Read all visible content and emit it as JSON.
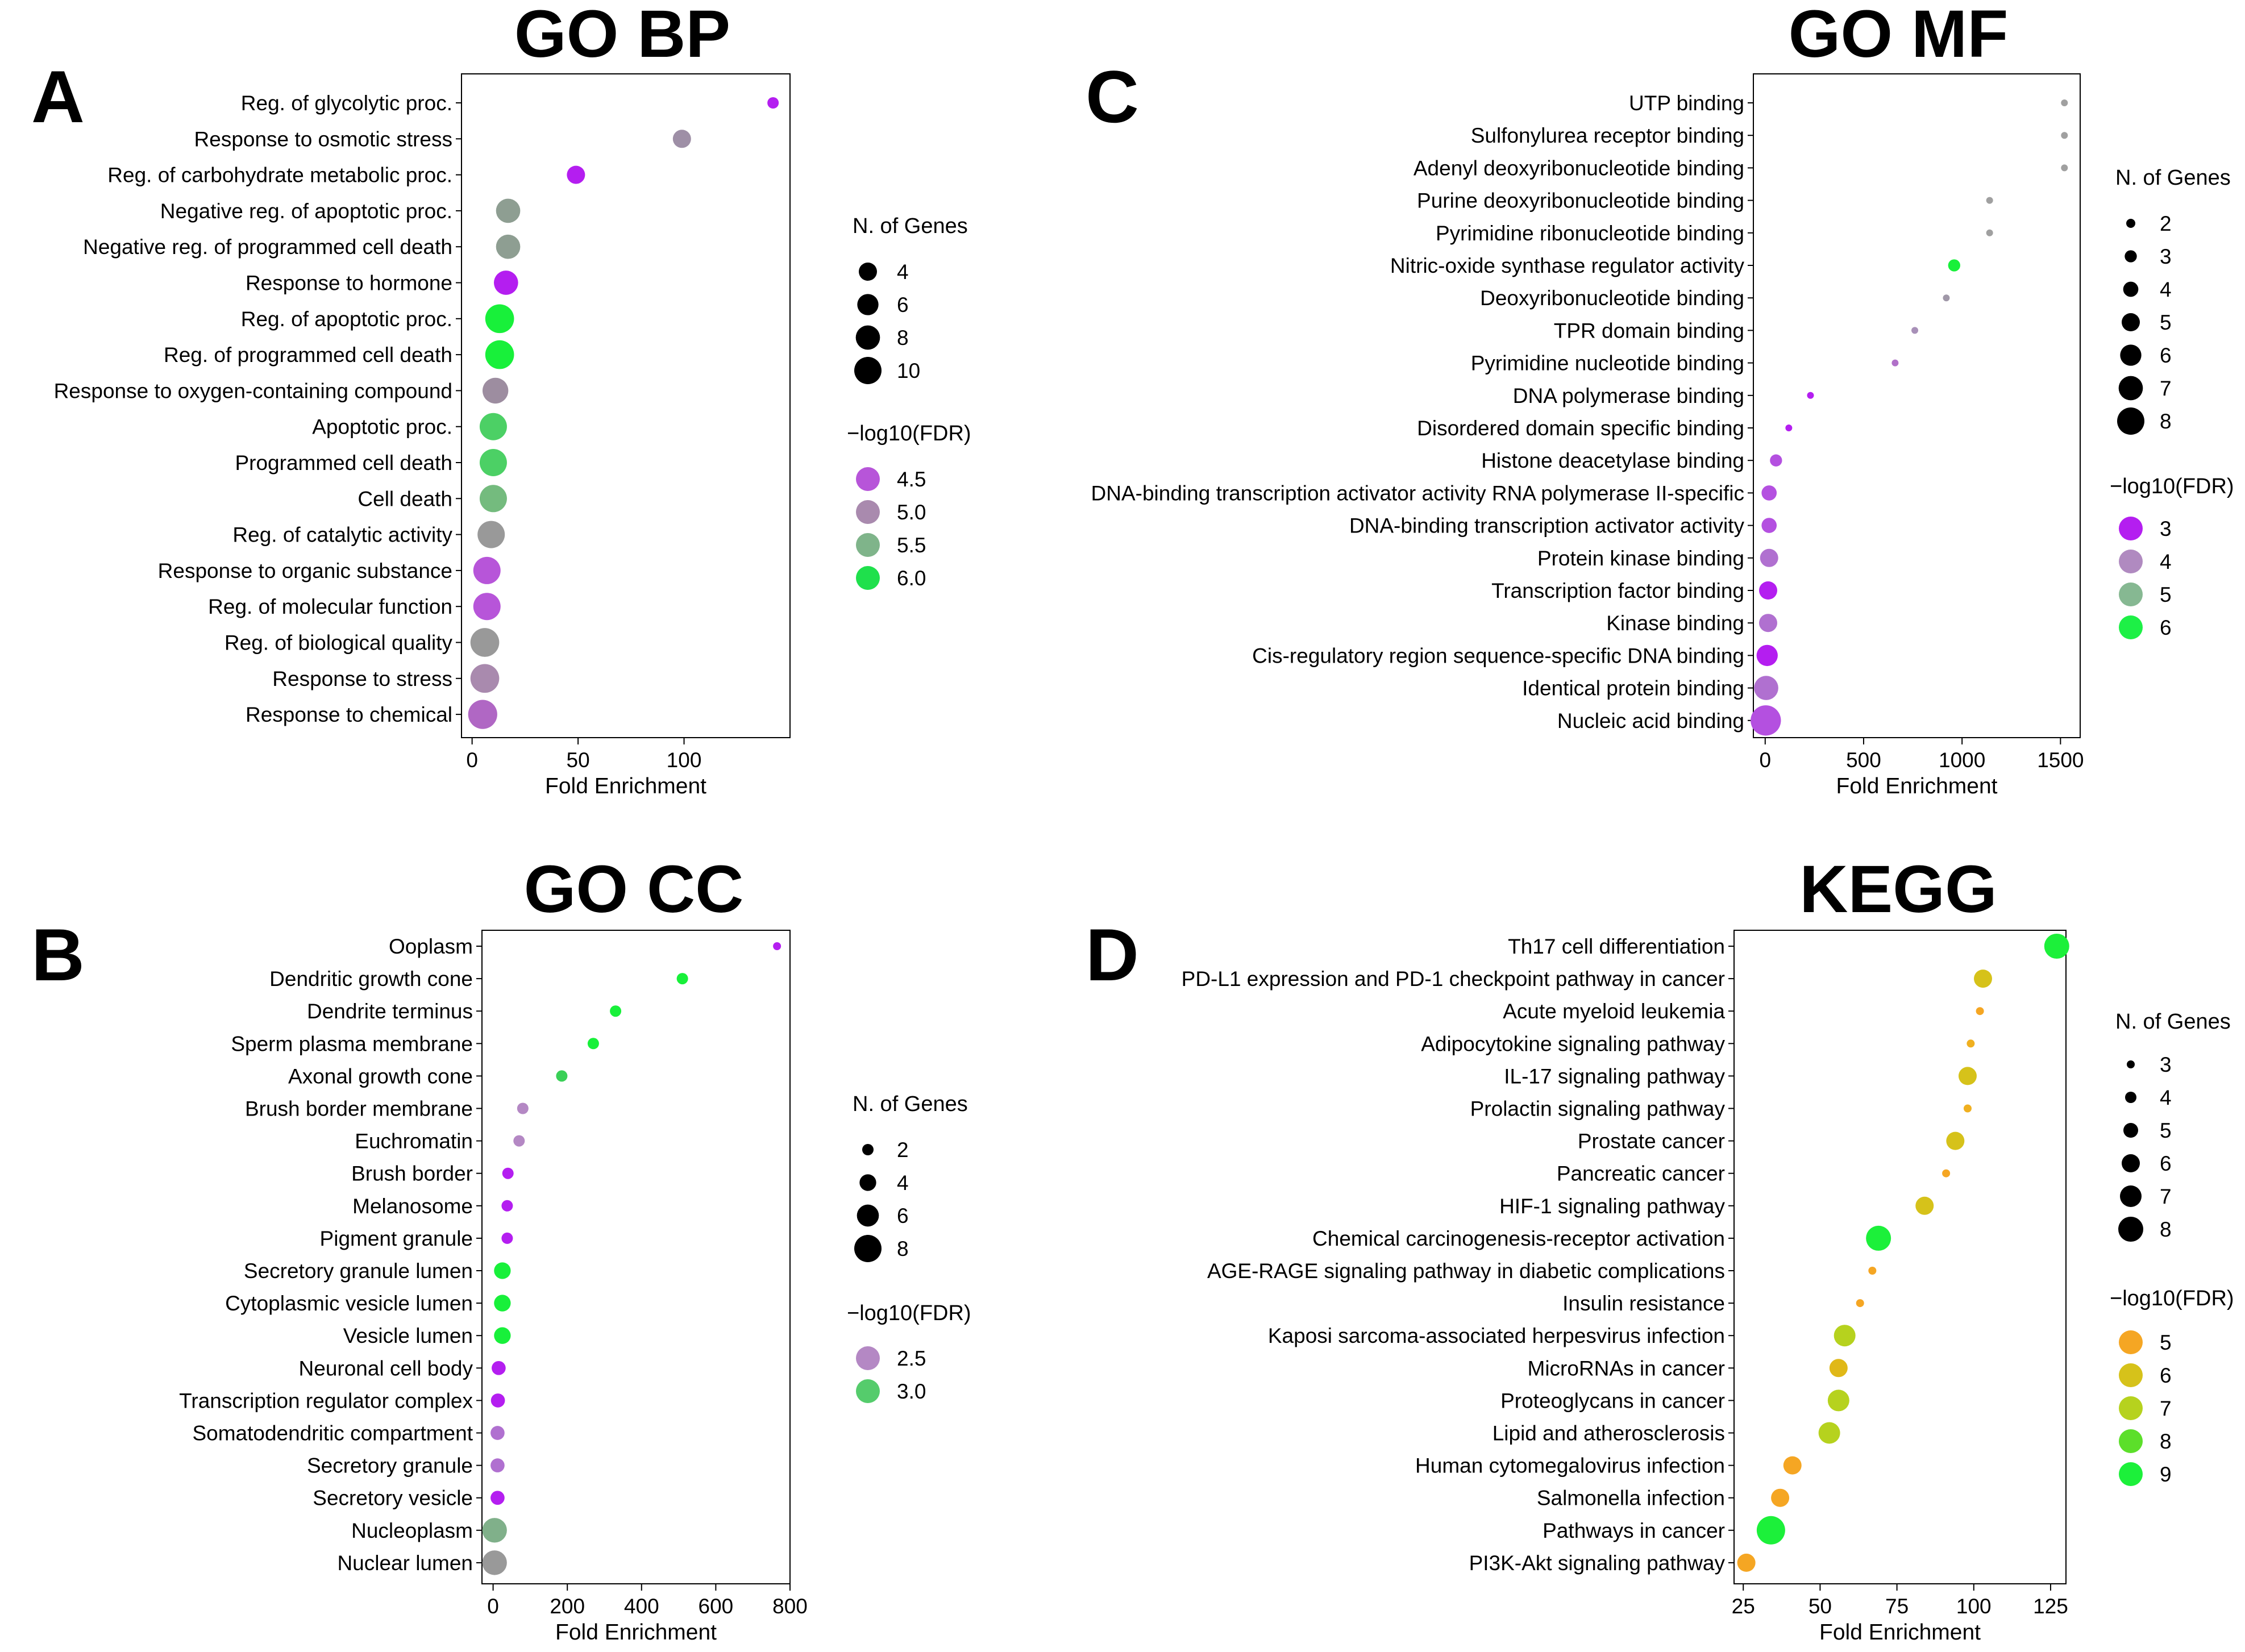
{
  "chart_data": [
    {
      "panel": "A",
      "type": "scatter",
      "title": "GO BP",
      "xlabel": "Fold Enrichment",
      "xlim": [
        -5,
        150
      ],
      "xticks": [
        0,
        50,
        100
      ],
      "size_legend_title": "N. of Genes",
      "size_legend": [
        4,
        6,
        8,
        10
      ],
      "color_legend_title": "−log10(FDR)",
      "color_legend": [
        {
          "label": "4.5",
          "color": "#b755d9"
        },
        {
          "label": "5.0",
          "color": "#a98aae"
        },
        {
          "label": "5.5",
          "color": "#7fb48a"
        },
        {
          "label": "6.0",
          "color": "#1fe04c"
        }
      ],
      "points": [
        {
          "term": "Reg. of glycolytic proc.",
          "x": 142,
          "genes": 2,
          "color": "#b41ef0"
        },
        {
          "term": "Response to osmotic stress",
          "x": 99,
          "genes": 4,
          "color": "#9e8fa6"
        },
        {
          "term": "Reg. of carbohydrate metabolic proc.",
          "x": 49,
          "genes": 4,
          "color": "#b41ef0"
        },
        {
          "term": "Negative reg. of apoptotic proc.",
          "x": 17,
          "genes": 8,
          "color": "#8e9e92"
        },
        {
          "term": "Negative reg. of programmed cell death",
          "x": 17,
          "genes": 8,
          "color": "#8e9e92"
        },
        {
          "term": "Response to hormone",
          "x": 16,
          "genes": 8,
          "color": "#b41ef0"
        },
        {
          "term": "Reg. of apoptotic proc.",
          "x": 13,
          "genes": 11,
          "color": "#18f03a"
        },
        {
          "term": "Reg. of programmed cell death",
          "x": 13,
          "genes": 11,
          "color": "#18f03a"
        },
        {
          "term": "Response to oxygen-containing compound",
          "x": 11,
          "genes": 9,
          "color": "#9d8da0"
        },
        {
          "term": "Apoptotic proc.",
          "x": 10,
          "genes": 10,
          "color": "#4cd065"
        },
        {
          "term": "Programmed cell death",
          "x": 10,
          "genes": 10,
          "color": "#4cd065"
        },
        {
          "term": "Cell death",
          "x": 10,
          "genes": 10,
          "color": "#74bb7e"
        },
        {
          "term": "Reg. of catalytic activity",
          "x": 9,
          "genes": 10,
          "color": "#999999"
        },
        {
          "term": "Response to organic substance",
          "x": 7,
          "genes": 10,
          "color": "#b755d9"
        },
        {
          "term": "Reg. of molecular function",
          "x": 7,
          "genes": 10,
          "color": "#b755d9"
        },
        {
          "term": "Reg. of biological quality",
          "x": 6,
          "genes": 11,
          "color": "#999999"
        },
        {
          "term": "Response to stress",
          "x": 6,
          "genes": 11,
          "color": "#a98aae"
        },
        {
          "term": "Response to chemical",
          "x": 5,
          "genes": 12,
          "color": "#b067c4"
        }
      ]
    },
    {
      "panel": "C",
      "type": "scatter",
      "title": "GO MF",
      "xlabel": "Fold Enrichment",
      "xlim": [
        -60,
        1600
      ],
      "xticks": [
        0,
        500,
        1000,
        1500
      ],
      "size_legend_title": "N. of Genes",
      "size_legend": [
        2,
        3,
        4,
        5,
        6,
        7,
        8
      ],
      "color_legend_title": "−log10(FDR)",
      "color_legend": [
        {
          "label": "3",
          "color": "#b41ef0"
        },
        {
          "label": "4",
          "color": "#b08ac0"
        },
        {
          "label": "5",
          "color": "#86b892"
        },
        {
          "label": "6",
          "color": "#1df046"
        }
      ],
      "points": [
        {
          "term": "UTP binding",
          "x": 1520,
          "genes": 1,
          "color": "#a0a0a0"
        },
        {
          "term": "Sulfonylurea receptor binding",
          "x": 1520,
          "genes": 1,
          "color": "#a0a0a0"
        },
        {
          "term": "Adenyl deoxyribonucleotide binding",
          "x": 1520,
          "genes": 1,
          "color": "#a0a0a0"
        },
        {
          "term": "Purine deoxyribonucleotide binding",
          "x": 1140,
          "genes": 1,
          "color": "#a0a0a0"
        },
        {
          "term": "Pyrimidine ribonucleotide binding",
          "x": 1140,
          "genes": 1,
          "color": "#a0a0a0"
        },
        {
          "term": "Nitric-oxide synthase regulator activity",
          "x": 960,
          "genes": 3,
          "color": "#18f03a"
        },
        {
          "term": "Deoxyribonucleotide binding",
          "x": 920,
          "genes": 1,
          "color": "#a098a8"
        },
        {
          "term": "TPR domain binding",
          "x": 760,
          "genes": 1,
          "color": "#a890b8"
        },
        {
          "term": "Pyrimidine nucleotide binding",
          "x": 660,
          "genes": 1,
          "color": "#b070c8"
        },
        {
          "term": "DNA polymerase binding",
          "x": 230,
          "genes": 1,
          "color": "#b41ef0"
        },
        {
          "term": "Disordered domain specific binding",
          "x": 120,
          "genes": 1,
          "color": "#b41ef0"
        },
        {
          "term": "Histone deacetylase binding",
          "x": 55,
          "genes": 3,
          "color": "#b450e0"
        },
        {
          "term": "DNA-binding transcription activator activity RNA polymerase II-specific",
          "x": 20,
          "genes": 4,
          "color": "#b450e0"
        },
        {
          "term": "DNA-binding transcription activator activity",
          "x": 20,
          "genes": 4,
          "color": "#b450e0"
        },
        {
          "term": "Protein kinase binding",
          "x": 20,
          "genes": 5,
          "color": "#b070d0"
        },
        {
          "term": "Transcription factor binding",
          "x": 15,
          "genes": 5,
          "color": "#b41ef0"
        },
        {
          "term": "Kinase binding",
          "x": 15,
          "genes": 5,
          "color": "#b070d0"
        },
        {
          "term": "Cis-regulatory region sequence-specific DNA binding",
          "x": 10,
          "genes": 6,
          "color": "#b41ef0"
        },
        {
          "term": "Identical protein binding",
          "x": 5,
          "genes": 7,
          "color": "#b070d0"
        },
        {
          "term": "Nucleic acid binding",
          "x": 3,
          "genes": 9,
          "color": "#b450e0"
        }
      ]
    },
    {
      "panel": "B",
      "type": "scatter",
      "title": "GO CC",
      "xlabel": "Fold Enrichment",
      "xlim": [
        -30,
        800
      ],
      "xticks": [
        0,
        200,
        400,
        600,
        800
      ],
      "size_legend_title": "N. of Genes",
      "size_legend": [
        2,
        4,
        6,
        8
      ],
      "color_legend_title": "−log10(FDR)",
      "color_legend": [
        {
          "label": "2.5",
          "color": "#b488c4"
        },
        {
          "label": "3.0",
          "color": "#55cc6c"
        }
      ],
      "points": [
        {
          "term": "Ooplasm",
          "x": 765,
          "genes": 1,
          "color": "#b41ef0"
        },
        {
          "term": "Dendritic growth cone",
          "x": 510,
          "genes": 2,
          "color": "#18f03a"
        },
        {
          "term": "Dendrite terminus",
          "x": 330,
          "genes": 2,
          "color": "#18f03a"
        },
        {
          "term": "Sperm plasma membrane",
          "x": 270,
          "genes": 2,
          "color": "#18f03a"
        },
        {
          "term": "Axonal growth cone",
          "x": 185,
          "genes": 2,
          "color": "#3ad057"
        },
        {
          "term": "Brush border membrane",
          "x": 80,
          "genes": 2,
          "color": "#b488c4"
        },
        {
          "term": "Euchromatin",
          "x": 70,
          "genes": 2,
          "color": "#b488c4"
        },
        {
          "term": "Brush border",
          "x": 40,
          "genes": 2,
          "color": "#b41ef0"
        },
        {
          "term": "Melanosome",
          "x": 38,
          "genes": 2,
          "color": "#b41ef0"
        },
        {
          "term": "Pigment granule",
          "x": 38,
          "genes": 2,
          "color": "#b41ef0"
        },
        {
          "term": "Secretory granule lumen",
          "x": 25,
          "genes": 4,
          "color": "#18f03a"
        },
        {
          "term": "Cytoplasmic vesicle lumen",
          "x": 25,
          "genes": 4,
          "color": "#18f03a"
        },
        {
          "term": "Vesicle lumen",
          "x": 25,
          "genes": 4,
          "color": "#18f03a"
        },
        {
          "term": "Neuronal cell body",
          "x": 15,
          "genes": 3,
          "color": "#b41ef0"
        },
        {
          "term": "Transcription regulator complex",
          "x": 13,
          "genes": 3,
          "color": "#b41ef0"
        },
        {
          "term": "Somatodendritic compartment",
          "x": 12,
          "genes": 3,
          "color": "#b070d0"
        },
        {
          "term": "Secretory granule",
          "x": 12,
          "genes": 3,
          "color": "#b070d0"
        },
        {
          "term": "Secretory vesicle",
          "x": 12,
          "genes": 3,
          "color": "#b41ef0"
        },
        {
          "term": "Nucleoplasm",
          "x": 4,
          "genes": 7,
          "color": "#80b08a"
        },
        {
          "term": "Nuclear lumen",
          "x": 4,
          "genes": 7,
          "color": "#999999"
        }
      ]
    },
    {
      "panel": "D",
      "type": "scatter",
      "title": "KEGG",
      "xlabel": "Fold Enrichment",
      "xlim": [
        22,
        130
      ],
      "xticks": [
        25,
        50,
        75,
        100,
        125
      ],
      "size_legend_title": "N. of Genes",
      "size_legend": [
        3,
        4,
        5,
        6,
        7,
        8
      ],
      "color_legend_title": "−log10(FDR)",
      "color_legend": [
        {
          "label": "5",
          "color": "#f5a623"
        },
        {
          "label": "6",
          "color": "#d6c21a"
        },
        {
          "label": "7",
          "color": "#b6d21e"
        },
        {
          "label": "8",
          "color": "#5cdf2a"
        },
        {
          "label": "9",
          "color": "#1cf03a"
        }
      ],
      "points": [
        {
          "term": "Th17 cell differentiation",
          "x": 127,
          "genes": 8,
          "color": "#1cf03a"
        },
        {
          "term": "PD-L1 expression and PD-1 checkpoint pathway in cancer",
          "x": 103,
          "genes": 6,
          "color": "#d6c21a"
        },
        {
          "term": "Acute myeloid leukemia",
          "x": 102,
          "genes": 3,
          "color": "#f5a623"
        },
        {
          "term": "Adipocytokine signaling pathway",
          "x": 99,
          "genes": 3,
          "color": "#f0b020"
        },
        {
          "term": "IL-17 signaling pathway",
          "x": 98,
          "genes": 6,
          "color": "#d6c21a"
        },
        {
          "term": "Prolactin signaling pathway",
          "x": 98,
          "genes": 3,
          "color": "#f0b020"
        },
        {
          "term": "Prostate cancer",
          "x": 94,
          "genes": 6,
          "color": "#d6c21a"
        },
        {
          "term": "Pancreatic cancer",
          "x": 91,
          "genes": 3,
          "color": "#f5a623"
        },
        {
          "term": "HIF-1 signaling pathway",
          "x": 84,
          "genes": 6,
          "color": "#d6c21a"
        },
        {
          "term": "Chemical carcinogenesis-receptor activation",
          "x": 69,
          "genes": 8,
          "color": "#1cf03a"
        },
        {
          "term": "AGE-RAGE signaling pathway in diabetic complications",
          "x": 67,
          "genes": 3,
          "color": "#f5a623"
        },
        {
          "term": "Insulin resistance",
          "x": 63,
          "genes": 3,
          "color": "#f5a623"
        },
        {
          "term": "Kaposi sarcoma-associated herpesvirus infection",
          "x": 58,
          "genes": 7,
          "color": "#b6d21e"
        },
        {
          "term": "MicroRNAs in cancer",
          "x": 56,
          "genes": 6,
          "color": "#e0b818"
        },
        {
          "term": "Proteoglycans in cancer",
          "x": 56,
          "genes": 7,
          "color": "#b6d21e"
        },
        {
          "term": "Lipid and atherosclerosis",
          "x": 53,
          "genes": 7,
          "color": "#b6d21e"
        },
        {
          "term": "Human cytomegalovirus infection",
          "x": 41,
          "genes": 6,
          "color": "#f5a623"
        },
        {
          "term": "Salmonella infection",
          "x": 37,
          "genes": 6,
          "color": "#f5a623"
        },
        {
          "term": "Pathways in cancer",
          "x": 34,
          "genes": 9,
          "color": "#1cf03a"
        },
        {
          "term": "PI3K-Akt signaling pathway",
          "x": 26,
          "genes": 6,
          "color": "#f5a623"
        }
      ]
    }
  ]
}
